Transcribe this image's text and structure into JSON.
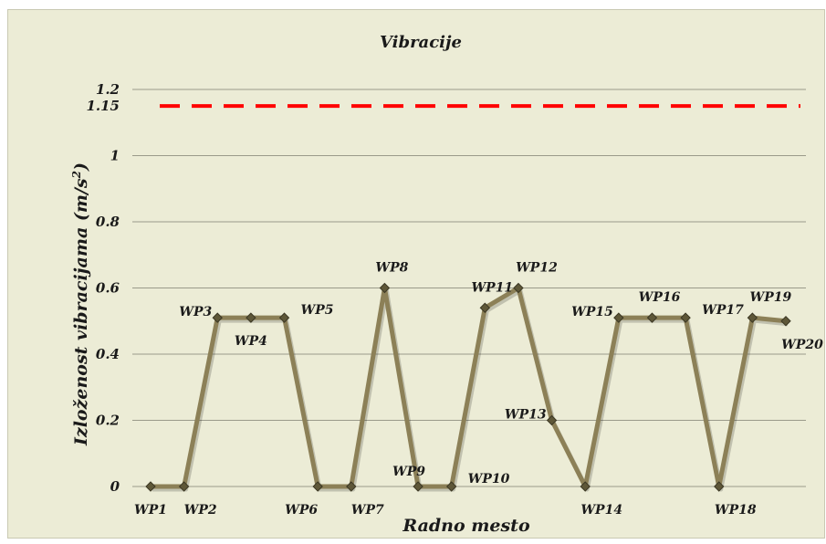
{
  "chart_data": {
    "type": "line",
    "title": "Vibracije",
    "xlabel": "Radno mesto",
    "ylabel": "Izloženost vibracijama (m/s²)",
    "ylabel_main": "Izloženost vibracijama (m/s",
    "ylabel_sup": "2",
    "ylabel_end": ")",
    "ylim": [
      0,
      1.2
    ],
    "yticks": [
      0,
      0.2,
      0.4,
      0.6,
      0.8,
      1,
      1.15,
      1.2
    ],
    "ytick_labels": [
      "0",
      "0.2",
      "0.4",
      "0.6",
      "0.8",
      "1",
      "1.15",
      "1.2"
    ],
    "grid": true,
    "limit_line": {
      "value": 1.15,
      "color": "#ff0000",
      "style": "dashed"
    },
    "series_color": "#8c8057",
    "marker_color": "#5e5738",
    "points": [
      {
        "label": "WP1",
        "value": 0,
        "label_pos": "below"
      },
      {
        "label": "WP2",
        "value": 0,
        "label_pos": "below-right"
      },
      {
        "label": "WP3",
        "value": 0.51,
        "label_pos": "left"
      },
      {
        "label": "WP4",
        "value": 0.51,
        "label_pos": "below"
      },
      {
        "label": "WP5",
        "value": 0.51,
        "label_pos": "right"
      },
      {
        "label": "WP6",
        "value": 0,
        "label_pos": "below-left"
      },
      {
        "label": "WP7",
        "value": 0,
        "label_pos": "below-right"
      },
      {
        "label": "WP8",
        "value": 0.6,
        "label_pos": "above"
      },
      {
        "label": "WP9",
        "value": 0,
        "label_pos": "above-left"
      },
      {
        "label": "WP10",
        "value": 0,
        "label_pos": "right"
      },
      {
        "label": "WP11",
        "value": 0.54,
        "label_pos": "above"
      },
      {
        "label": "WP12",
        "value": 0.6,
        "label_pos": "above-right"
      },
      {
        "label": "WP13",
        "value": 0.2,
        "label_pos": "left"
      },
      {
        "label": "WP14",
        "value": 0,
        "label_pos": "below-right"
      },
      {
        "label": "WP15",
        "value": 0.51,
        "label_pos": "left"
      },
      {
        "label": "WP16",
        "value": 0.51,
        "label_pos": "above"
      },
      {
        "label": "WP17",
        "value": 0.51,
        "label_pos": "right"
      },
      {
        "label": "WP18",
        "value": 0,
        "label_pos": "below-right"
      },
      {
        "label": "WP19",
        "value": 0.51,
        "label_pos": "above-right"
      },
      {
        "label": "WP20",
        "value": 0.5,
        "label_pos": "below-right"
      }
    ]
  }
}
